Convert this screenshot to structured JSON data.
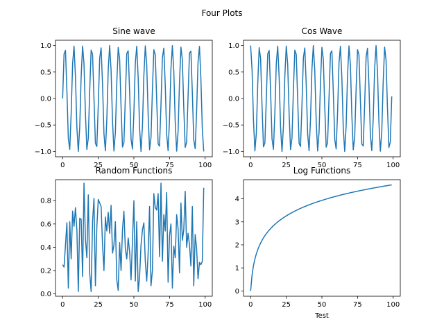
{
  "figure": {
    "suptitle": "Four Plots",
    "line_color": "#1f77b4"
  },
  "chart_data": [
    {
      "type": "line",
      "title": "Sine wave",
      "xlabel": "",
      "ylabel": "",
      "xlim": [
        -5,
        105
      ],
      "ylim": [
        -1.1,
        1.1
      ],
      "xticks": [
        0,
        25,
        50,
        75,
        100
      ],
      "xtick_labels": [
        "0",
        "25",
        "50",
        "75",
        "100"
      ],
      "yticks": [
        -1.0,
        -0.5,
        0.0,
        0.5,
        1.0
      ],
      "ytick_labels": [
        "−1.0",
        "−0.5",
        "0.0",
        "0.5",
        "1.0"
      ],
      "grid": false,
      "series": [
        {
          "x": [
            0,
            1,
            2,
            3,
            4,
            5,
            6,
            7,
            8,
            9,
            10,
            11,
            12,
            13,
            14,
            15,
            16,
            17,
            18,
            19,
            20,
            21,
            22,
            23,
            24,
            25,
            26,
            27,
            28,
            29,
            30,
            31,
            32,
            33,
            34,
            35,
            36,
            37,
            38,
            39,
            40,
            41,
            42,
            43,
            44,
            45,
            46,
            47,
            48,
            49,
            50,
            51,
            52,
            53,
            54,
            55,
            56,
            57,
            58,
            59,
            60,
            61,
            62,
            63,
            64,
            65,
            66,
            67,
            68,
            69,
            70,
            71,
            72,
            73,
            74,
            75,
            76,
            77,
            78,
            79,
            80,
            81,
            82,
            83,
            84,
            85,
            86,
            87,
            88,
            89,
            90,
            91,
            92,
            93,
            94,
            95,
            96,
            97,
            98,
            99
          ],
          "y": [
            0,
            0.841,
            0.909,
            0.141,
            -0.757,
            -0.959,
            -0.279,
            0.657,
            0.989,
            0.412,
            -0.544,
            -1.0,
            -0.537,
            0.42,
            0.991,
            0.65,
            -0.288,
            -0.961,
            -0.751,
            0.15,
            0.913,
            0.837,
            -0.009,
            -0.846,
            -0.906,
            -0.132,
            0.763,
            0.956,
            0.271,
            -0.664,
            -0.988,
            -0.404,
            0.551,
            1.0,
            0.529,
            -0.428,
            -0.992,
            -0.644,
            0.296,
            0.964,
            0.745,
            -0.159,
            -0.917,
            -0.832,
            0.018,
            0.851,
            0.902,
            0.124,
            -0.768,
            -0.954,
            -0.262,
            0.67,
            0.987,
            0.396,
            -0.559,
            -1.0,
            -0.522,
            0.436,
            0.993,
            0.637,
            -0.305,
            -0.967,
            -0.739,
            0.167,
            0.92,
            0.827,
            -0.027,
            -0.856,
            -0.898,
            -0.115,
            0.774,
            0.951,
            0.254,
            -0.677,
            -0.985,
            -0.388,
            0.566,
            0.999,
            0.514,
            -0.444,
            -0.994,
            -0.63,
            0.313,
            0.969,
            0.733,
            -0.176,
            -0.923,
            -0.822,
            0.035,
            0.86,
            0.894,
            0.106,
            -0.779,
            -0.948,
            -0.245,
            0.683,
            0.984,
            0.38,
            -0.573,
            -0.999
          ]
        }
      ]
    },
    {
      "type": "line",
      "title": "Cos Wave",
      "xlabel": "",
      "ylabel": "",
      "xlim": [
        -5,
        105
      ],
      "ylim": [
        -1.1,
        1.1
      ],
      "xticks": [
        0,
        25,
        50,
        75,
        100
      ],
      "xtick_labels": [
        "0",
        "25",
        "50",
        "75",
        "100"
      ],
      "yticks": [
        -1.0,
        -0.5,
        0.0,
        0.5,
        1.0
      ],
      "ytick_labels": [
        "−1.0",
        "−0.5",
        "0.0",
        "0.5",
        "1.0"
      ],
      "grid": false,
      "series": [
        {
          "x": [
            0,
            1,
            2,
            3,
            4,
            5,
            6,
            7,
            8,
            9,
            10,
            11,
            12,
            13,
            14,
            15,
            16,
            17,
            18,
            19,
            20,
            21,
            22,
            23,
            24,
            25,
            26,
            27,
            28,
            29,
            30,
            31,
            32,
            33,
            34,
            35,
            36,
            37,
            38,
            39,
            40,
            41,
            42,
            43,
            44,
            45,
            46,
            47,
            48,
            49,
            50,
            51,
            52,
            53,
            54,
            55,
            56,
            57,
            58,
            59,
            60,
            61,
            62,
            63,
            64,
            65,
            66,
            67,
            68,
            69,
            70,
            71,
            72,
            73,
            74,
            75,
            76,
            77,
            78,
            79,
            80,
            81,
            82,
            83,
            84,
            85,
            86,
            87,
            88,
            89,
            90,
            91,
            92,
            93,
            94,
            95,
            96,
            97,
            98,
            99
          ],
          "y": [
            1.0,
            0.54,
            -0.416,
            -0.99,
            -0.654,
            0.284,
            0.96,
            0.754,
            -0.146,
            -0.911,
            -0.839,
            0.004,
            0.844,
            0.907,
            0.137,
            -0.76,
            -0.958,
            -0.275,
            0.66,
            0.989,
            0.408,
            -0.548,
            -1.0,
            -0.533,
            0.424,
            0.991,
            0.647,
            -0.292,
            -0.963,
            -0.748,
            0.154,
            0.914,
            0.834,
            -0.013,
            -0.849,
            -0.904,
            -0.128,
            0.765,
            0.955,
            0.267,
            -0.667,
            -0.987,
            -0.4,
            0.555,
            1.0,
            0.525,
            -0.432,
            -0.992,
            -0.64,
            0.3,
            0.965,
            0.742,
            -0.163,
            -0.918,
            -0.829,
            0.022,
            0.853,
            0.9,
            0.119,
            -0.771,
            -0.952,
            -0.258,
            0.674,
            0.986,
            0.392,
            -0.562,
            -0.999,
            -0.518,
            0.44,
            0.993,
            0.633,
            -0.309,
            -0.968,
            -0.736,
            0.172,
            0.922,
            0.824,
            -0.031,
            -0.858,
            -0.896,
            -0.11,
            0.777,
            0.949,
            0.25,
            -0.68,
            -0.984,
            -0.384,
            0.57,
            0.999,
            0.51,
            -0.448,
            -0.995,
            -0.626,
            0.317,
            0.97,
            0.73,
            -0.18,
            -0.925,
            -0.819,
            0.039
          ]
        }
      ]
    },
    {
      "type": "line",
      "title": "Random Functions",
      "xlabel": "",
      "ylabel": "",
      "xlim": [
        -5,
        105
      ],
      "ylim": [
        -0.02,
        0.98
      ],
      "xticks": [
        0,
        25,
        50,
        75,
        100
      ],
      "xtick_labels": [
        "0",
        "25",
        "50",
        "75",
        "100"
      ],
      "yticks": [
        0.0,
        0.2,
        0.4,
        0.6,
        0.8
      ],
      "ytick_labels": [
        "0.0",
        "0.2",
        "0.4",
        "0.6",
        "0.8"
      ],
      "grid": false,
      "series": [
        {
          "x": [
            0,
            1,
            2,
            3,
            4,
            5,
            6,
            7,
            8,
            9,
            10,
            11,
            12,
            13,
            14,
            15,
            16,
            17,
            18,
            19,
            20,
            21,
            22,
            23,
            24,
            25,
            26,
            27,
            28,
            29,
            30,
            31,
            32,
            33,
            34,
            35,
            36,
            37,
            38,
            39,
            40,
            41,
            42,
            43,
            44,
            45,
            46,
            47,
            48,
            49,
            50,
            51,
            52,
            53,
            54,
            55,
            56,
            57,
            58,
            59,
            60,
            61,
            62,
            63,
            64,
            65,
            66,
            67,
            68,
            69,
            70,
            71,
            72,
            73,
            74,
            75,
            76,
            77,
            78,
            79,
            80,
            81,
            82,
            83,
            84,
            85,
            86,
            87,
            88,
            89,
            90,
            91,
            92,
            93,
            94,
            95,
            96,
            97,
            98,
            99
          ],
          "y": [
            0.25,
            0.23,
            0.42,
            0.61,
            0.05,
            0.62,
            0.3,
            0.71,
            0.58,
            0.74,
            0.55,
            0.02,
            0.65,
            0.64,
            0.15,
            0.95,
            0.47,
            0.31,
            0.85,
            0.18,
            0.02,
            0.62,
            0.82,
            0.07,
            0.57,
            0.81,
            0.78,
            0.75,
            0.42,
            0.2,
            0.66,
            0.54,
            0.7,
            0.52,
            0.76,
            0.35,
            0.42,
            0.62,
            0.12,
            0.03,
            0.44,
            0.2,
            0.55,
            0.71,
            0.39,
            0.3,
            0.48,
            0.36,
            0.12,
            0.46,
            0.8,
            0.11,
            0.62,
            0.02,
            0.15,
            0.42,
            0.55,
            0.61,
            0.28,
            0.11,
            0.35,
            0.75,
            0.07,
            0.2,
            0.86,
            0.74,
            0.72,
            0.86,
            0.32,
            0.95,
            0.28,
            0.68,
            0.54,
            0.87,
            0.1,
            0.5,
            0.6,
            0.05,
            0.41,
            0.31,
            0.68,
            0.56,
            0.18,
            0.78,
            0.46,
            0.55,
            0.88,
            0.4,
            0.52,
            0.42,
            0.24,
            0.75,
            0.07,
            0.51,
            0.39,
            0.13,
            0.27,
            0.25,
            0.28,
            0.91
          ]
        }
      ]
    },
    {
      "type": "line",
      "title": "Log Functions",
      "xlabel": "Test",
      "ylabel": "",
      "xlim": [
        -5,
        105
      ],
      "ylim": [
        -0.23,
        4.83
      ],
      "xticks": [
        0,
        25,
        50,
        75,
        100
      ],
      "xtick_labels": [
        "0",
        "25",
        "50",
        "75",
        "100"
      ],
      "yticks": [
        0,
        1,
        2,
        3,
        4
      ],
      "ytick_labels": [
        "0",
        "1",
        "2",
        "3",
        "4"
      ],
      "grid": false,
      "series": [
        {
          "x": [
            0,
            1,
            2,
            3,
            4,
            5,
            6,
            7,
            8,
            9,
            10,
            11,
            12,
            13,
            14,
            15,
            16,
            17,
            18,
            19,
            20,
            21,
            22,
            23,
            24,
            25,
            26,
            27,
            28,
            29,
            30,
            31,
            32,
            33,
            34,
            35,
            36,
            37,
            38,
            39,
            40,
            41,
            42,
            43,
            44,
            45,
            46,
            47,
            48,
            49,
            50,
            51,
            52,
            53,
            54,
            55,
            56,
            57,
            58,
            59,
            60,
            61,
            62,
            63,
            64,
            65,
            66,
            67,
            68,
            69,
            70,
            71,
            72,
            73,
            74,
            75,
            76,
            77,
            78,
            79,
            80,
            81,
            82,
            83,
            84,
            85,
            86,
            87,
            88,
            89,
            90,
            91,
            92,
            93,
            94,
            95,
            96,
            97,
            98,
            99
          ],
          "y": [
            0.0,
            0.693,
            1.099,
            1.386,
            1.609,
            1.792,
            1.946,
            2.079,
            2.197,
            2.303,
            2.398,
            2.485,
            2.565,
            2.639,
            2.708,
            2.773,
            2.833,
            2.89,
            2.944,
            2.996,
            3.045,
            3.091,
            3.135,
            3.178,
            3.219,
            3.258,
            3.296,
            3.332,
            3.367,
            3.401,
            3.434,
            3.466,
            3.497,
            3.526,
            3.555,
            3.584,
            3.611,
            3.638,
            3.664,
            3.689,
            3.714,
            3.738,
            3.761,
            3.784,
            3.807,
            3.829,
            3.85,
            3.871,
            3.892,
            3.912,
            3.932,
            3.951,
            3.97,
            3.989,
            4.007,
            4.025,
            4.043,
            4.06,
            4.078,
            4.094,
            4.111,
            4.127,
            4.143,
            4.159,
            4.174,
            4.19,
            4.205,
            4.22,
            4.234,
            4.248,
            4.263,
            4.277,
            4.29,
            4.304,
            4.317,
            4.331,
            4.344,
            4.357,
            4.369,
            4.382,
            4.394,
            4.407,
            4.419,
            4.431,
            4.443,
            4.454,
            4.466,
            4.477,
            4.489,
            4.5,
            4.511,
            4.522,
            4.533,
            4.543,
            4.554,
            4.564,
            4.575,
            4.585,
            4.595,
            4.605
          ]
        }
      ]
    }
  ]
}
